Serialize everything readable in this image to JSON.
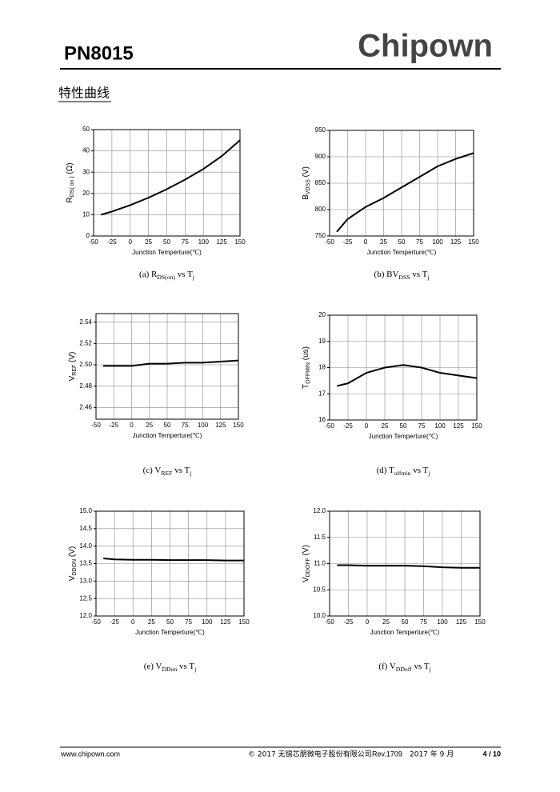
{
  "header": {
    "model": "PN8015",
    "brand": "Chipown"
  },
  "section_title": "特性曲线",
  "chart_data": [
    {
      "type": "line",
      "ylabel": [
        "R",
        "DS( on )",
        " (Ω)"
      ],
      "xlabel": "Junction Temperture(℃)",
      "caption": [
        "(a) R",
        "DS(on)",
        " vs T",
        "j"
      ],
      "x": [
        -40,
        -25,
        0,
        25,
        50,
        75,
        100,
        125,
        150
      ],
      "values": [
        10,
        11.5,
        14.5,
        18,
        22,
        26.5,
        31.5,
        37.5,
        45
      ],
      "xlim": [
        -50,
        150
      ],
      "xticks": [
        -50,
        -25,
        0,
        25,
        50,
        75,
        100,
        125,
        150
      ],
      "ylim": [
        0,
        50
      ],
      "yticks": [
        0,
        10,
        20,
        30,
        40,
        50
      ],
      "grid": true,
      "color": "#000000"
    },
    {
      "type": "line",
      "ylabel": [
        "B",
        "VDSS",
        " (V)"
      ],
      "xlabel": "Junction Temperture(℃)",
      "caption": [
        "(b) BV",
        "DSS",
        " vs T",
        "j"
      ],
      "x": [
        -40,
        -25,
        0,
        25,
        50,
        75,
        100,
        125,
        150
      ],
      "values": [
        758,
        782,
        805,
        822,
        842,
        862,
        882,
        896,
        907
      ],
      "xlim": [
        -50,
        150
      ],
      "xticks": [
        -50,
        -25,
        0,
        25,
        50,
        75,
        100,
        125,
        150
      ],
      "ylim": [
        750,
        950
      ],
      "yticks": [
        750,
        800,
        850,
        900,
        950
      ],
      "grid": true,
      "color": "#000000"
    },
    {
      "type": "line",
      "ylabel": [
        "V",
        "REF",
        " (V)"
      ],
      "xlabel": "Junction Temperture(℃)",
      "caption": [
        "(c) V",
        "REF",
        " vs T",
        "j"
      ],
      "x": [
        -40,
        -25,
        0,
        25,
        50,
        75,
        100,
        125,
        150
      ],
      "values": [
        2.499,
        2.499,
        2.499,
        2.501,
        2.501,
        2.502,
        2.502,
        2.503,
        2.504
      ],
      "xlim": [
        -50,
        150
      ],
      "xticks": [
        -50,
        -25,
        0,
        25,
        50,
        75,
        100,
        125,
        150
      ],
      "ylim": [
        2.449,
        2.548
      ],
      "yticks": [
        2.46,
        2.48,
        {
          "value": 2.5,
          "label": "2.50"
        },
        2.52,
        2.54
      ],
      "grid": true,
      "color": "#000000"
    },
    {
      "type": "line",
      "ylabel": [
        "T",
        "OFFMIN",
        " (us)"
      ],
      "xlabel": "Junction Temperture(℃)",
      "caption": [
        "(d) T",
        "offmin",
        " vs T",
        "j"
      ],
      "x": [
        -40,
        -25,
        0,
        25,
        50,
        75,
        100,
        125,
        150
      ],
      "values": [
        17.3,
        17.4,
        17.8,
        18.0,
        18.1,
        18.0,
        17.8,
        17.7,
        17.6
      ],
      "xlim": [
        -50,
        150
      ],
      "xticks": [
        -50,
        -25,
        0,
        25,
        50,
        75,
        100,
        125,
        150
      ],
      "ylim": [
        16,
        20
      ],
      "yticks": [
        16,
        17,
        18,
        19,
        20
      ],
      "grid": true,
      "color": "#000000"
    },
    {
      "type": "line",
      "ylabel": [
        "V",
        "DDON",
        " (V)"
      ],
      "xlabel": "Junction Temperture(℃)",
      "caption": [
        "(e) V",
        "DDon",
        " vs T",
        "j"
      ],
      "x": [
        -40,
        -25,
        0,
        25,
        50,
        75,
        100,
        125,
        150
      ],
      "values": [
        13.65,
        13.62,
        13.61,
        13.61,
        13.6,
        13.6,
        13.6,
        13.59,
        13.59
      ],
      "xlim": [
        -50,
        150
      ],
      "xticks": [
        -50,
        -25,
        0,
        25,
        50,
        75,
        100,
        125,
        150
      ],
      "ylim": [
        12,
        15
      ],
      "yticks": [
        {
          "value": 12,
          "label": "12.0"
        },
        12.5,
        {
          "value": 13,
          "label": "13.0"
        },
        13.5,
        {
          "value": 14,
          "label": "14.0"
        },
        14.5,
        {
          "value": 15,
          "label": "15.0"
        }
      ],
      "grid": true,
      "color": "#000000"
    },
    {
      "type": "line",
      "ylabel": [
        "V",
        "DDOFF",
        " (V)"
      ],
      "xlabel": "Junction Temperture(℃)",
      "caption": [
        "(f) V",
        "DDoff",
        " vs T",
        "j"
      ],
      "x": [
        -40,
        -25,
        0,
        25,
        50,
        75,
        100,
        125,
        150
      ],
      "values": [
        10.97,
        10.97,
        10.96,
        10.96,
        10.96,
        10.95,
        10.93,
        10.92,
        10.92
      ],
      "xlim": [
        -50,
        150
      ],
      "xticks": [
        -50,
        -25,
        0,
        25,
        50,
        75,
        100,
        125,
        150
      ],
      "ylim": [
        10,
        12
      ],
      "yticks": [
        {
          "value": 10,
          "label": "10.0"
        },
        10.5,
        {
          "value": 11,
          "label": "11.0"
        },
        11.5,
        {
          "value": 12,
          "label": "12.0"
        }
      ],
      "grid": true,
      "color": "#000000"
    }
  ],
  "footer": {
    "website": "www.chipown.com",
    "copyright": "© 2017 无锡芯朋微电子股份有限公司",
    "revision": "Rev.1709",
    "date": "2017 年 9 月",
    "page": "4 / 10"
  }
}
